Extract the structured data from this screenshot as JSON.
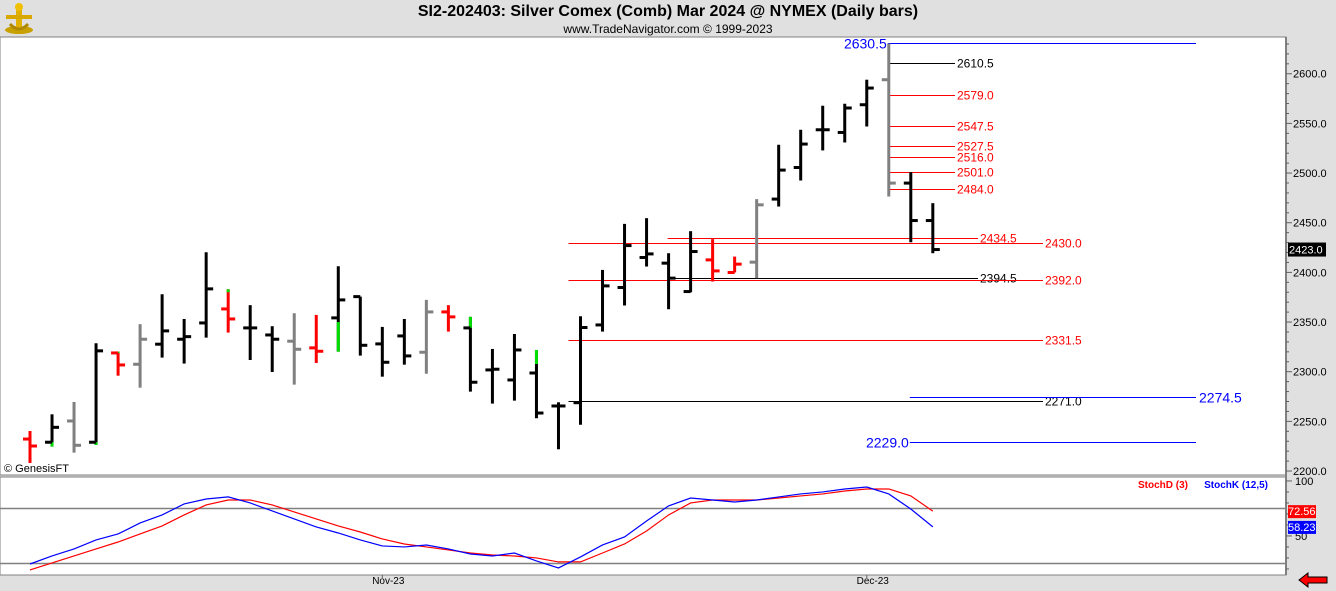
{
  "header": {
    "title": "SI2-202403:  Silver Comex (Comb) Mar 2024 @ NYMEX  (Daily bars)",
    "subtitle": "www.TradeNavigator.com © 1999-2023",
    "logo": "TradeNavigator"
  },
  "copyright": "© GenesisFT",
  "icons": {
    "logo": "gold-figure-logo",
    "nav": "red-left-arrow-icon"
  },
  "colors": {
    "up": "#000000",
    "neutral": "#808080",
    "down": "#ff0000",
    "flag": "#00e000",
    "stochD": "#ff0000",
    "stochK": "#0000ff",
    "last_price_bg": "#000000"
  },
  "chart_data": [
    {
      "type": "ohlc",
      "ylim": [
        2196,
        2637
      ],
      "yticks": [
        2200,
        2250,
        2300,
        2350,
        2400,
        2450,
        2500,
        2550,
        2600
      ],
      "ytick_labels": [
        "2200.0",
        "2250.0",
        "2300.0",
        "2350.0",
        "2400.0",
        "2450.0",
        "2500.0",
        "2550.0",
        "2600.0"
      ],
      "xtick_labels": [
        {
          "bar": 16,
          "label": "Nov-23"
        },
        {
          "bar": 38,
          "label": "Dec-23"
        }
      ],
      "last_price": "2423.0",
      "bars": [
        {
          "o": 2232.2,
          "h": 2240.3,
          "l": 2208.1,
          "c": 2225.2,
          "color": "down"
        },
        {
          "o": 2229.0,
          "h": 2257.1,
          "l": 2224.6,
          "c": 2244.0,
          "color": "up",
          "green": [
            2224.6,
            2229.0
          ]
        },
        {
          "o": 2250.4,
          "h": 2269.5,
          "l": 2218.5,
          "c": 2225.9,
          "color": "neutral"
        },
        {
          "o": 2229.0,
          "h": 2328.7,
          "l": 2226.2,
          "c": 2321.0,
          "color": "up",
          "green": [
            2226.2,
            2229.0
          ]
        },
        {
          "o": 2318.9,
          "h": 2320.2,
          "l": 2296.0,
          "c": 2306.8,
          "color": "down",
          "green": [
            2318.9,
            2320.2
          ]
        },
        {
          "o": 2307.5,
          "h": 2347.9,
          "l": 2283.9,
          "c": 2332.7,
          "color": "neutral"
        },
        {
          "o": 2327.7,
          "h": 2378.0,
          "l": 2314.2,
          "c": 2341.1,
          "color": "up"
        },
        {
          "o": 2332.7,
          "h": 2353.1,
          "l": 2308.2,
          "c": 2335.3,
          "color": "up"
        },
        {
          "o": 2349.1,
          "h": 2420.3,
          "l": 2334.3,
          "c": 2383.4,
          "color": "up"
        },
        {
          "o": 2363.2,
          "h": 2383.0,
          "l": 2339.4,
          "c": 2353.1,
          "color": "down",
          "green": [
            2380.0,
            2383.0
          ]
        },
        {
          "o": 2344.1,
          "h": 2367.0,
          "l": 2311.8,
          "c": 2344.1,
          "color": "up"
        },
        {
          "o": 2337.0,
          "h": 2345.8,
          "l": 2299.7,
          "c": 2332.7,
          "color": "up"
        },
        {
          "o": 2330.7,
          "h": 2358.9,
          "l": 2287.0,
          "c": 2322.6,
          "color": "neutral"
        },
        {
          "o": 2324.0,
          "h": 2357.2,
          "l": 2308.8,
          "c": 2320.6,
          "color": "down"
        },
        {
          "o": 2354.2,
          "h": 2406.2,
          "l": 2320.2,
          "c": 2372.3,
          "color": "up",
          "green": [
            2320.2,
            2350.0
          ]
        },
        {
          "o": 2375.6,
          "h": 2375.6,
          "l": 2316.2,
          "c": 2326.6,
          "color": "up"
        },
        {
          "o": 2328.0,
          "h": 2345.1,
          "l": 2295.0,
          "c": 2309.5,
          "color": "up"
        },
        {
          "o": 2336.0,
          "h": 2353.1,
          "l": 2307.1,
          "c": 2315.9,
          "color": "up"
        },
        {
          "o": 2319.6,
          "h": 2372.3,
          "l": 2298.0,
          "c": 2360.2,
          "color": "neutral"
        },
        {
          "o": 2360.2,
          "h": 2367.0,
          "l": 2340.4,
          "c": 2355.2,
          "color": "down"
        },
        {
          "o": 2344.1,
          "h": 2355.2,
          "l": 2279.9,
          "c": 2289.4,
          "color": "up",
          "green": [
            2344.1,
            2355.2
          ]
        },
        {
          "o": 2301.8,
          "h": 2322.9,
          "l": 2267.9,
          "c": 2302.5,
          "color": "up"
        },
        {
          "o": 2291.7,
          "h": 2338.0,
          "l": 2270.9,
          "c": 2321.9,
          "color": "up"
        },
        {
          "o": 2298.7,
          "h": 2321.9,
          "l": 2253.2,
          "c": 2258.4,
          "color": "up",
          "green": [
            2307.8,
            2321.9
          ]
        },
        {
          "o": 2265.5,
          "h": 2269.2,
          "l": 2221.9,
          "c": 2265.5,
          "color": "up"
        },
        {
          "o": 2268.8,
          "h": 2355.9,
          "l": 2246.6,
          "c": 2344.5,
          "color": "up"
        },
        {
          "o": 2347.1,
          "h": 2402.5,
          "l": 2340.4,
          "c": 2386.4,
          "color": "up"
        },
        {
          "o": 2384.8,
          "h": 2448.9,
          "l": 2366.6,
          "c": 2427.0,
          "color": "up"
        },
        {
          "o": 2415.0,
          "h": 2454.6,
          "l": 2405.9,
          "c": 2418.6,
          "color": "up"
        },
        {
          "o": 2409.3,
          "h": 2419.3,
          "l": 2362.9,
          "c": 2394.2,
          "color": "up"
        },
        {
          "o": 2380.7,
          "h": 2441.5,
          "l": 2380.0,
          "c": 2421.0,
          "color": "up"
        },
        {
          "o": 2412.6,
          "h": 2433.5,
          "l": 2390.8,
          "c": 2401.5,
          "color": "down"
        },
        {
          "o": 2399.9,
          "h": 2415.9,
          "l": 2399.9,
          "c": 2408.3,
          "color": "down"
        },
        {
          "o": 2410.3,
          "h": 2473.8,
          "l": 2394.2,
          "c": 2468.0,
          "color": "neutral"
        },
        {
          "o": 2473.8,
          "h": 2528.5,
          "l": 2466.3,
          "c": 2503.0,
          "color": "up"
        },
        {
          "o": 2505.6,
          "h": 2543.6,
          "l": 2492.5,
          "c": 2529.2,
          "color": "up"
        },
        {
          "o": 2543.6,
          "h": 2567.8,
          "l": 2522.8,
          "c": 2543.6,
          "color": "up"
        },
        {
          "o": 2540.9,
          "h": 2569.8,
          "l": 2530.8,
          "c": 2565.5,
          "color": "up"
        },
        {
          "o": 2568.8,
          "h": 2594.0,
          "l": 2546.9,
          "c": 2585.6,
          "color": "up"
        },
        {
          "o": 2594.0,
          "h": 2630.5,
          "l": 2476.4,
          "c": 2489.9,
          "color": "neutral"
        },
        {
          "o": 2489.9,
          "h": 2501.0,
          "l": 2430.4,
          "c": 2452.2,
          "color": "up"
        },
        {
          "o": 2452.2,
          "h": 2469.7,
          "l": 2419.3,
          "c": 2423.0,
          "color": "up"
        }
      ],
      "levels": [
        {
          "value": 2630.5,
          "label": "2630.5",
          "color": "#0000ff",
          "from": 39,
          "to": "far",
          "label_side": "left"
        },
        {
          "value": 2610.5,
          "label": "2610.5",
          "color": "#000000",
          "from": 39,
          "to": "short"
        },
        {
          "value": 2579.0,
          "label": "2579.0",
          "color": "#ff0000",
          "from": 39,
          "to": "short"
        },
        {
          "value": 2547.5,
          "label": "2547.5",
          "color": "#ff0000",
          "from": 39,
          "to": "short"
        },
        {
          "value": 2527.5,
          "label": "2527.5",
          "color": "#ff0000",
          "from": 39,
          "to": "short"
        },
        {
          "value": 2516.0,
          "label": "2516.0",
          "color": "#ff0000",
          "from": 39,
          "to": "short"
        },
        {
          "value": 2501.0,
          "label": "2501.0",
          "color": "#ff0000",
          "from": 39,
          "to": "short"
        },
        {
          "value": 2484.0,
          "label": "2484.0",
          "color": "#ff0000",
          "from": 39,
          "to": "short"
        },
        {
          "value": 2434.5,
          "label": "2434.5",
          "color": "#ff0000",
          "from": 29,
          "to": "mid"
        },
        {
          "value": 2430.0,
          "label": "2430.0",
          "color": "#ff0000",
          "from": 24.5,
          "to": "long"
        },
        {
          "value": 2394.5,
          "label": "2394.5",
          "color": "#000000",
          "from": 29,
          "to": "mid"
        },
        {
          "value": 2392.0,
          "label": "2392.0",
          "color": "#ff0000",
          "from": 24.5,
          "to": "long"
        },
        {
          "value": 2331.5,
          "label": "2331.5",
          "color": "#ff0000",
          "from": 24.5,
          "to": "long"
        },
        {
          "value": 2271.0,
          "label": "2271.0",
          "color": "#000000",
          "from": 24.5,
          "to": "long"
        },
        {
          "value": 2274.5,
          "label": "2274.5",
          "color": "#0000ff",
          "from": 40,
          "to": "far",
          "label_side": "right"
        },
        {
          "value": 2229.0,
          "label": "2229.0",
          "color": "#0000ff",
          "from": 40,
          "to": "far",
          "label_side": "left"
        }
      ]
    },
    {
      "type": "line",
      "ylim": [
        14.5,
        103.6
      ],
      "yticks": [
        100,
        50
      ],
      "ytick_labels": [
        "100",
        "50"
      ],
      "reference_lines": [
        75,
        25
      ],
      "series": [
        {
          "name": "StochD (3)",
          "color": "#ff0000",
          "last": "72.56",
          "values": [
            19.1,
            25.5,
            31.8,
            38.2,
            44.5,
            51.8,
            59.1,
            69.1,
            78.2,
            82.7,
            82.7,
            78.2,
            71.8,
            65.5,
            59.1,
            53.6,
            47.3,
            42.7,
            40.0,
            37.3,
            34.5,
            32.7,
            31.8,
            30.0,
            26.4,
            26.4,
            34.5,
            42.7,
            54.5,
            69.1,
            80.0,
            82.7,
            82.7,
            82.7,
            84.5,
            86.4,
            88.2,
            90.9,
            92.7,
            92.7,
            86.4,
            72.56
          ]
        },
        {
          "name": "StochK (12,5)",
          "color": "#0000ff",
          "last": "58.23",
          "values": [
            24.5,
            31.8,
            38.2,
            46.4,
            51.8,
            61.8,
            69.1,
            79.1,
            83.6,
            85.5,
            80.0,
            72.7,
            65.5,
            58.2,
            52.7,
            46.4,
            40.9,
            40.0,
            41.8,
            38.2,
            33.6,
            31.8,
            34.5,
            27.3,
            20.9,
            30.9,
            41.8,
            49.1,
            63.6,
            77.3,
            84.5,
            82.7,
            80.9,
            82.7,
            85.5,
            88.2,
            90.0,
            92.7,
            94.5,
            88.2,
            74.5,
            58.23
          ]
        }
      ]
    }
  ]
}
